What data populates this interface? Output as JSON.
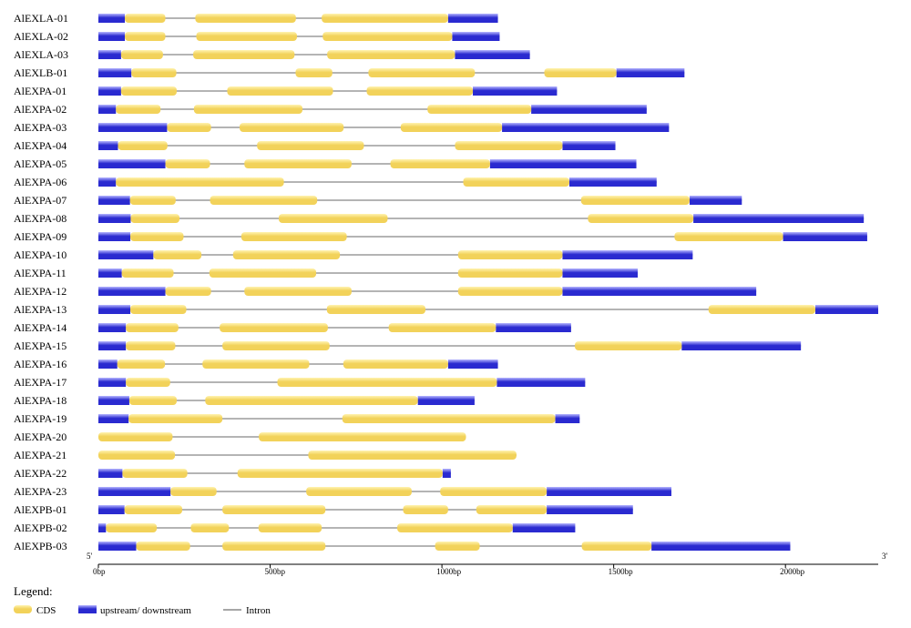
{
  "colors": {
    "cds": "#f2d25a",
    "cds_light": "#fff3b0",
    "utr": "#2a2ad0",
    "utr_light": "#b6b6ff",
    "intron": "#888888",
    "axis": "#000000"
  },
  "axis": {
    "five_prime": "5'",
    "three_prime": "3'",
    "max_bp": 2270,
    "ticks": [
      {
        "value": 0,
        "label": "0bp"
      },
      {
        "value": 500,
        "label": "500bp"
      },
      {
        "value": 1000,
        "label": "1000bp"
      },
      {
        "value": 1500,
        "label": "1500bp"
      },
      {
        "value": 2000,
        "label": "2000bp"
      }
    ]
  },
  "legend": {
    "title": "Legend:",
    "cds": "CDS",
    "utr": "upstream/ downstream",
    "intron": "Intron"
  },
  "chart_data": {
    "type": "gene-structure",
    "unit": "bp",
    "genes": [
      {
        "name": "AlEXLA-01",
        "length": 1163,
        "utr": [
          [
            0,
            77
          ],
          [
            1018,
            1163
          ]
        ],
        "cds": [
          [
            77,
            195
          ],
          [
            282,
            575
          ],
          [
            650,
            1018
          ]
        ]
      },
      {
        "name": "AlEXLA-02",
        "length": 1168,
        "utr": [
          [
            0,
            77
          ],
          [
            1030,
            1168
          ]
        ],
        "cds": [
          [
            77,
            195
          ],
          [
            285,
            578
          ],
          [
            653,
            1030
          ]
        ]
      },
      {
        "name": "AlEXLA-03",
        "length": 1256,
        "utr": [
          [
            0,
            66
          ],
          [
            1038,
            1256
          ]
        ],
        "cds": [
          [
            66,
            188
          ],
          [
            276,
            571
          ],
          [
            666,
            1038
          ]
        ]
      },
      {
        "name": "AlEXLB-01",
        "length": 1706,
        "utr": [
          [
            0,
            96
          ],
          [
            1508,
            1706
          ]
        ],
        "cds": [
          [
            96,
            227
          ],
          [
            574,
            681
          ],
          [
            786,
            1096
          ],
          [
            1298,
            1508
          ]
        ]
      },
      {
        "name": "AlEXPA-01",
        "length": 1335,
        "utr": [
          [
            0,
            66
          ],
          [
            1090,
            1335
          ]
        ],
        "cds": [
          [
            66,
            228
          ],
          [
            375,
            683
          ],
          [
            781,
            1090
          ]
        ]
      },
      {
        "name": "AlEXPA-02",
        "length": 1596,
        "utr": [
          [
            0,
            51
          ],
          [
            1260,
            1596
          ]
        ],
        "cds": [
          [
            51,
            181
          ],
          [
            278,
            594
          ],
          [
            958,
            1260
          ]
        ]
      },
      {
        "name": "AlEXPA-03",
        "length": 1661,
        "utr": [
          [
            0,
            200
          ],
          [
            1175,
            1661
          ]
        ],
        "cds": [
          [
            200,
            328
          ],
          [
            411,
            714
          ],
          [
            880,
            1175
          ]
        ]
      },
      {
        "name": "AlEXPA-04",
        "length": 1505,
        "utr": [
          [
            0,
            57
          ],
          [
            1351,
            1505
          ]
        ],
        "cds": [
          [
            57,
            201
          ],
          [
            462,
            773
          ],
          [
            1038,
            1351
          ]
        ]
      },
      {
        "name": "AlEXPA-05",
        "length": 1566,
        "utr": [
          [
            0,
            195
          ],
          [
            1140,
            1566
          ]
        ],
        "cds": [
          [
            195,
            325
          ],
          [
            425,
            737
          ],
          [
            850,
            1140
          ]
        ]
      },
      {
        "name": "AlEXPA-06",
        "length": 1625,
        "utr": [
          [
            0,
            51
          ],
          [
            1371,
            1625
          ]
        ],
        "cds": [
          [
            51,
            540
          ],
          [
            1062,
            1371
          ]
        ]
      },
      {
        "name": "AlEXPA-07",
        "length": 1873,
        "utr": [
          [
            0,
            92
          ],
          [
            1721,
            1873
          ]
        ],
        "cds": [
          [
            92,
            225
          ],
          [
            325,
            637
          ],
          [
            1405,
            1721
          ]
        ]
      },
      {
        "name": "AlEXPA-08",
        "length": 2228,
        "utr": [
          [
            0,
            94
          ],
          [
            1732,
            2228
          ]
        ],
        "cds": [
          [
            94,
            236
          ],
          [
            525,
            842
          ],
          [
            1425,
            1732
          ]
        ]
      },
      {
        "name": "AlEXPA-09",
        "length": 2238,
        "utr": [
          [
            0,
            93
          ],
          [
            1993,
            2238
          ]
        ],
        "cds": [
          [
            93,
            248
          ],
          [
            416,
            723
          ],
          [
            1677,
            1993
          ]
        ]
      },
      {
        "name": "AlEXPA-10",
        "length": 1730,
        "utr": [
          [
            0,
            160
          ],
          [
            1351,
            1730
          ]
        ],
        "cds": [
          [
            160,
            300
          ],
          [
            392,
            703
          ],
          [
            1047,
            1351
          ]
        ]
      },
      {
        "name": "AlEXPA-11",
        "length": 1570,
        "utr": [
          [
            0,
            68
          ],
          [
            1351,
            1570
          ]
        ],
        "cds": [
          [
            68,
            219
          ],
          [
            323,
            634
          ],
          [
            1047,
            1351
          ]
        ]
      },
      {
        "name": "AlEXPA-12",
        "length": 1915,
        "utr": [
          [
            0,
            195
          ],
          [
            1351,
            1915
          ]
        ],
        "cds": [
          [
            195,
            328
          ],
          [
            425,
            737
          ],
          [
            1047,
            1351
          ]
        ]
      },
      {
        "name": "AlEXPA-13",
        "length": 2270,
        "utr": [
          [
            0,
            93
          ],
          [
            2087,
            2270
          ]
        ],
        "cds": [
          [
            93,
            256
          ],
          [
            665,
            952
          ],
          [
            1776,
            2087
          ]
        ]
      },
      {
        "name": "AlEXPA-14",
        "length": 1376,
        "utr": [
          [
            0,
            80
          ],
          [
            1157,
            1376
          ]
        ],
        "cds": [
          [
            80,
            233
          ],
          [
            353,
            668
          ],
          [
            845,
            1157
          ]
        ]
      },
      {
        "name": "AlEXPA-15",
        "length": 2045,
        "utr": [
          [
            0,
            80
          ],
          [
            1698,
            2045
          ]
        ],
        "cds": [
          [
            80,
            224
          ],
          [
            361,
            673
          ],
          [
            1387,
            1698
          ]
        ]
      },
      {
        "name": "AlEXPA-16",
        "length": 1163,
        "utr": [
          [
            0,
            55
          ],
          [
            1018,
            1163
          ]
        ],
        "cds": [
          [
            55,
            194
          ],
          [
            303,
            614
          ],
          [
            713,
            1018
          ]
        ]
      },
      {
        "name": "AlEXPA-17",
        "length": 1417,
        "utr": [
          [
            0,
            80
          ],
          [
            1160,
            1417
          ]
        ],
        "cds": [
          [
            80,
            209
          ],
          [
            521,
            1160
          ]
        ]
      },
      {
        "name": "AlEXPA-18",
        "length": 1095,
        "utr": [
          [
            0,
            90
          ],
          [
            930,
            1095
          ]
        ],
        "cds": [
          [
            90,
            228
          ],
          [
            311,
            930
          ]
        ]
      },
      {
        "name": "AlEXPA-19",
        "length": 1401,
        "utr": [
          [
            0,
            88
          ],
          [
            1330,
            1401
          ]
        ],
        "cds": [
          [
            88,
            361
          ],
          [
            710,
            1330
          ]
        ]
      },
      {
        "name": "AlEXPA-20",
        "length": 1070,
        "utr": [],
        "cds": [
          [
            0,
            216
          ],
          [
            467,
            1070
          ]
        ]
      },
      {
        "name": "AlEXPA-21",
        "length": 1217,
        "utr": [],
        "cds": [
          [
            0,
            223
          ],
          [
            611,
            1217
          ]
        ]
      },
      {
        "name": "AlEXPA-22",
        "length": 1026,
        "utr": [
          [
            0,
            70
          ],
          [
            1002,
            1026
          ]
        ],
        "cds": [
          [
            70,
            259
          ],
          [
            405,
            1002
          ]
        ]
      },
      {
        "name": "AlEXPA-23",
        "length": 1668,
        "utr": [
          [
            0,
            210
          ],
          [
            1305,
            1668
          ]
        ],
        "cds": [
          [
            210,
            344
          ],
          [
            605,
            912
          ],
          [
            995,
            1305
          ]
        ]
      },
      {
        "name": "AlEXPB-01",
        "length": 1556,
        "utr": [
          [
            0,
            76
          ],
          [
            1305,
            1556
          ]
        ],
        "cds": [
          [
            76,
            244
          ],
          [
            361,
            661
          ],
          [
            887,
            1018
          ],
          [
            1100,
            1305
          ]
        ]
      },
      {
        "name": "AlEXPB-02",
        "length": 1388,
        "utr": [
          [
            0,
            22
          ],
          [
            1206,
            1388
          ]
        ],
        "cds": [
          [
            22,
            170
          ],
          [
            269,
            380
          ],
          [
            466,
            650
          ],
          [
            870,
            1206
          ]
        ]
      },
      {
        "name": "AlEXPB-03",
        "length": 2014,
        "utr": [
          [
            0,
            110
          ],
          [
            1610,
            2014
          ]
        ],
        "cds": [
          [
            110,
            267
          ],
          [
            361,
            661
          ],
          [
            980,
            1110
          ],
          [
            1407,
            1610
          ]
        ]
      }
    ]
  }
}
